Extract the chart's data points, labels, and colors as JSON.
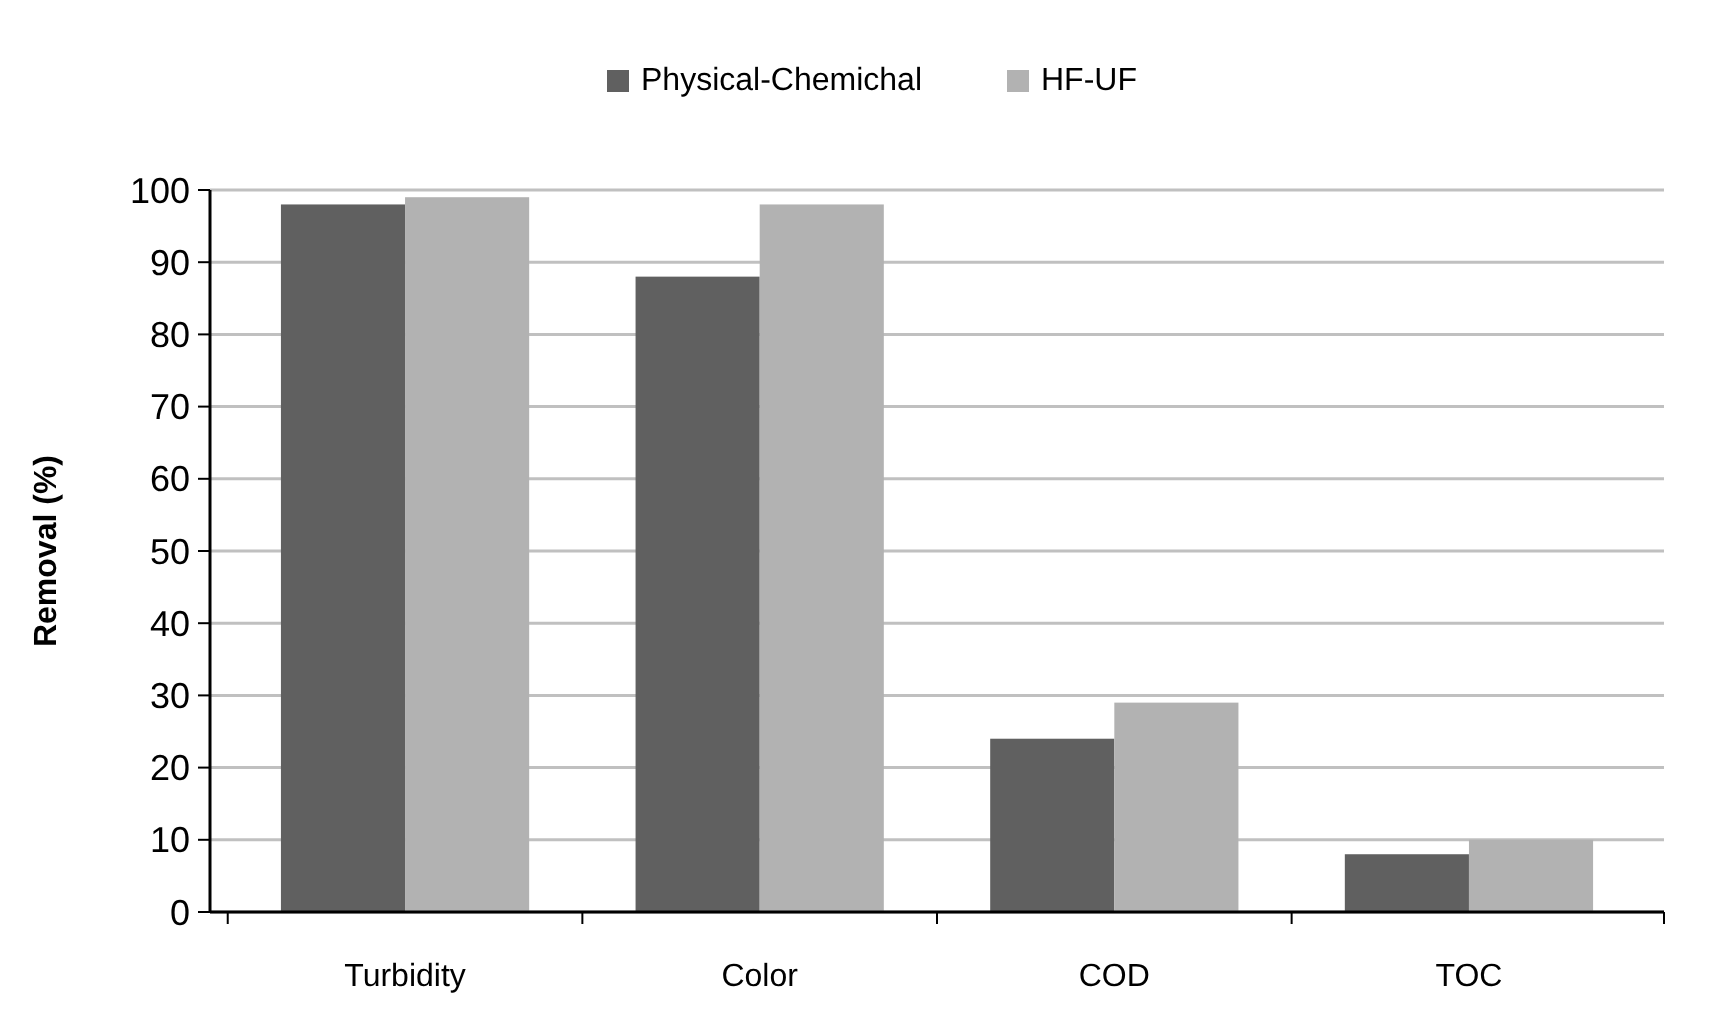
{
  "chart_data": {
    "type": "bar",
    "ylabel": "Removal (%)",
    "categories": [
      "Turbidity",
      "Color",
      "COD",
      "TOC"
    ],
    "series": [
      {
        "name": "Physical-Chemichal",
        "color": "#606060",
        "values": [
          98,
          88,
          24,
          8
        ]
      },
      {
        "name": "HF-UF",
        "color": "#b2b2b2",
        "values": [
          99,
          98,
          29,
          10
        ]
      }
    ],
    "ylim": [
      0,
      100
    ],
    "yticks": [
      0,
      10,
      20,
      30,
      40,
      50,
      60,
      70,
      80,
      90,
      100
    ],
    "grid": "y",
    "legend": "top"
  }
}
